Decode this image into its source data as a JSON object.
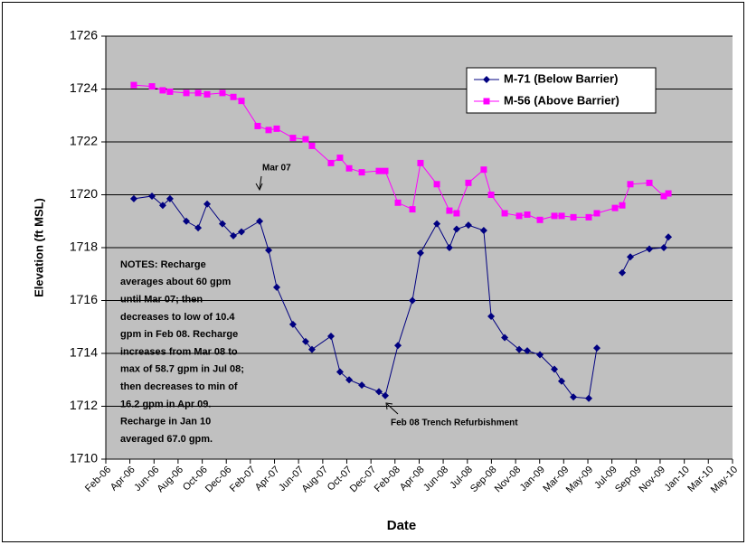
{
  "chart_data": {
    "type": "line",
    "xlabel": "Date",
    "ylabel": "Elevation (ft MSL)",
    "ylim": [
      1710,
      1726
    ],
    "yticks": [
      1710,
      1712,
      1714,
      1716,
      1718,
      1720,
      1722,
      1724,
      1726
    ],
    "xlim": [
      2006.083,
      2010.333
    ],
    "xticks": [
      {
        "value": 2006.083,
        "label": "Feb-06"
      },
      {
        "value": 2006.246,
        "label": "Apr-06"
      },
      {
        "value": 2006.41,
        "label": "Jun-06"
      },
      {
        "value": 2006.573,
        "label": "Aug-06"
      },
      {
        "value": 2006.737,
        "label": "Oct-06"
      },
      {
        "value": 2006.9,
        "label": "Dec-06"
      },
      {
        "value": 2007.063,
        "label": "Feb-07"
      },
      {
        "value": 2007.227,
        "label": "Apr-07"
      },
      {
        "value": 2007.39,
        "label": "Jun-07"
      },
      {
        "value": 2007.554,
        "label": "Aug-07"
      },
      {
        "value": 2007.717,
        "label": "Oct-07"
      },
      {
        "value": 2007.881,
        "label": "Dec-07"
      },
      {
        "value": 2008.044,
        "label": "Feb-08"
      },
      {
        "value": 2008.208,
        "label": "Apr-08"
      },
      {
        "value": 2008.371,
        "label": "Jun-08"
      },
      {
        "value": 2008.535,
        "label": "Jul-08"
      },
      {
        "value": 2008.698,
        "label": "Sep-08"
      },
      {
        "value": 2008.862,
        "label": "Nov-08"
      },
      {
        "value": 2009.025,
        "label": "Jan-09"
      },
      {
        "value": 2009.188,
        "label": "Mar-09"
      },
      {
        "value": 2009.352,
        "label": "May-09"
      },
      {
        "value": 2009.515,
        "label": "Jul-09"
      },
      {
        "value": 2009.679,
        "label": "Sep-09"
      },
      {
        "value": 2009.842,
        "label": "Nov-09"
      },
      {
        "value": 2010.006,
        "label": "Jan-10"
      },
      {
        "value": 2010.169,
        "label": "Mar-10"
      },
      {
        "value": 2010.333,
        "label": "May-10"
      }
    ],
    "grid": true,
    "legend": "upper right",
    "series": [
      {
        "name": "M-71 (Below Barrier)",
        "color": "#000080",
        "marker": "diamond",
        "x": [
          2006.273,
          2006.396,
          2006.469,
          2006.518,
          2006.629,
          2006.709,
          2006.77,
          2006.874,
          2006.948,
          2007.003,
          2007.126,
          2007.187,
          2007.242,
          2007.352,
          2007.438,
          2007.481,
          2007.61,
          2007.671,
          2007.733,
          2007.819,
          2007.935,
          2007.978,
          2008.064,
          2008.162,
          2008.217,
          2008.328,
          2008.413,
          2008.462,
          2008.542,
          2008.646,
          2008.696,
          2008.788,
          2008.886,
          2008.941,
          2009.027,
          2009.125,
          2009.174,
          2009.254,
          2009.358,
          2009.413,
          null,
          2009.585,
          2009.64,
          2009.769,
          2009.867,
          2009.898
        ],
        "values": [
          1719.85,
          1719.95,
          1719.6,
          1719.85,
          1719.0,
          1718.75,
          1719.65,
          1718.9,
          1718.45,
          1718.6,
          1719.0,
          1717.9,
          1716.5,
          1715.1,
          1714.45,
          1714.15,
          1714.65,
          1713.3,
          1713.0,
          1712.8,
          1712.55,
          1712.4,
          1714.3,
          1716.0,
          1717.8,
          1718.9,
          1718.0,
          1718.7,
          1718.85,
          1718.65,
          1715.4,
          1714.6,
          1714.15,
          1714.1,
          1713.95,
          1713.4,
          1712.95,
          1712.35,
          1712.3,
          1714.2,
          null,
          1717.05,
          1717.65,
          1717.95,
          1718.0,
          1718.4
        ]
      },
      {
        "name": "M-56 (Above Barrier)",
        "color": "#ff00ff",
        "marker": "square",
        "x": [
          2006.273,
          2006.396,
          2006.469,
          2006.518,
          2006.629,
          2006.709,
          2006.77,
          2006.874,
          2006.948,
          2007.003,
          2007.113,
          2007.187,
          2007.242,
          2007.352,
          2007.438,
          2007.481,
          2007.61,
          2007.671,
          2007.733,
          2007.819,
          2007.935,
          2007.978,
          2008.064,
          2008.162,
          2008.217,
          2008.328,
          2008.413,
          2008.462,
          2008.542,
          2008.646,
          2008.696,
          2008.788,
          2008.886,
          2008.941,
          2009.027,
          2009.125,
          2009.174,
          2009.254,
          2009.358,
          2009.413,
          2009.536,
          2009.585,
          2009.64,
          2009.769,
          2009.867,
          2009.898
        ],
        "values": [
          1724.15,
          1724.1,
          1723.95,
          1723.9,
          1723.85,
          1723.85,
          1723.8,
          1723.85,
          1723.7,
          1723.55,
          1722.6,
          1722.45,
          1722.5,
          1722.15,
          1722.1,
          1721.85,
          1721.2,
          1721.4,
          1721.0,
          1720.85,
          1720.9,
          1720.9,
          1719.7,
          1719.45,
          1721.2,
          1720.4,
          1719.4,
          1719.3,
          1720.45,
          1720.95,
          1720.0,
          1719.3,
          1719.2,
          1719.25,
          1719.05,
          1719.2,
          1719.2,
          1719.15,
          1719.15,
          1719.3,
          1719.5,
          1719.6,
          1720.4,
          1720.45,
          1719.95,
          1720.05
        ]
      }
    ],
    "annotations": [
      {
        "text": "Mar 07"
      },
      {
        "text": "Feb 08 Trench Refurbishment"
      }
    ],
    "notes": [
      "NOTES: Recharge",
      "averages about 60 gpm",
      "until Mar 07;  then",
      "decreases to low of 10.4",
      "gpm in Feb 08. Recharge",
      "increases from Mar 08 to",
      "max of 58.7 gpm in Jul 08;",
      "then  decreases to min of",
      "16.2 gpm in Apr 09.",
      "Recharge in Jan 10",
      "averaged   67.0 gpm."
    ]
  }
}
